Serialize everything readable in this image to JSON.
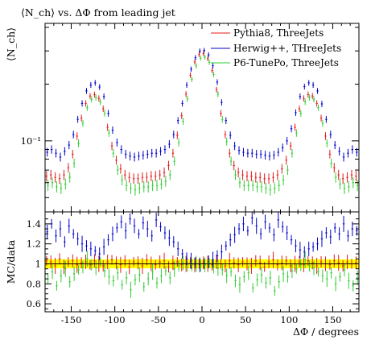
{
  "chart_data": {
    "type": "scatter",
    "title": "⟨N_ch⟩ vs. ΔΦ from leading jet",
    "main_panel": {
      "ylabel": "⟨N_ch⟩",
      "yscale": "log",
      "ylim": [
        0.042,
        0.42
      ],
      "ytick_labels": [
        {
          "value": 0.1,
          "label": "10⁻¹"
        }
      ],
      "legend_position": "top-right"
    },
    "ratio_panel": {
      "ylabel": "MC/data",
      "ylim": [
        0.52,
        1.52
      ],
      "ytick_values": [
        0.6,
        0.8,
        1.0,
        1.2,
        1.4
      ],
      "ytick_labels": [
        "0.6",
        "0.8",
        "1",
        "1.2",
        "1.4"
      ],
      "reference_band": {
        "low": 0.955,
        "high": 1.045,
        "color": "#ffff00"
      }
    },
    "xlabel": "ΔΦ / degrees",
    "xlim": [
      -180,
      180
    ],
    "xtick_values": [
      -150,
      -100,
      -50,
      0,
      50,
      100,
      150
    ],
    "xtick_labels": [
      "-150",
      "-100",
      "-50",
      "0",
      "50",
      "100",
      "150"
    ],
    "grid": false,
    "x": [
      -177.5,
      -172.5,
      -167.5,
      -162.5,
      -157.5,
      -152.5,
      -147.5,
      -142.5,
      -137.5,
      -132.5,
      -127.5,
      -122.5,
      -117.5,
      -112.5,
      -107.5,
      -102.5,
      -97.5,
      -92.5,
      -87.5,
      -82.5,
      -77.5,
      -72.5,
      -67.5,
      -62.5,
      -57.5,
      -52.5,
      -47.5,
      -42.5,
      -37.5,
      -32.5,
      -27.5,
      -22.5,
      -17.5,
      -12.5,
      -7.5,
      -2.5,
      2.5,
      7.5,
      12.5,
      17.5,
      22.5,
      27.5,
      32.5,
      37.5,
      42.5,
      47.5,
      52.5,
      57.5,
      62.5,
      67.5,
      72.5,
      77.5,
      82.5,
      87.5,
      92.5,
      97.5,
      102.5,
      107.5,
      112.5,
      117.5,
      122.5,
      127.5,
      132.5,
      137.5,
      142.5,
      147.5,
      152.5,
      157.5,
      162.5,
      167.5,
      172.5,
      177.5
    ],
    "series": [
      {
        "name": "Pythia8, ThreeJets",
        "color": "#e41a1c",
        "values": [
          0.065,
          0.066,
          0.064,
          0.063,
          0.066,
          0.072,
          0.085,
          0.106,
          0.132,
          0.158,
          0.173,
          0.176,
          0.168,
          0.148,
          0.118,
          0.094,
          0.079,
          0.071,
          0.066,
          0.064,
          0.063,
          0.063,
          0.064,
          0.064,
          0.065,
          0.065,
          0.066,
          0.068,
          0.074,
          0.086,
          0.107,
          0.136,
          0.177,
          0.223,
          0.262,
          0.287,
          0.29,
          0.273,
          0.236,
          0.187,
          0.14,
          0.108,
          0.086,
          0.074,
          0.068,
          0.066,
          0.065,
          0.065,
          0.064,
          0.064,
          0.063,
          0.063,
          0.064,
          0.066,
          0.071,
          0.079,
          0.094,
          0.118,
          0.148,
          0.168,
          0.176,
          0.173,
          0.158,
          0.132,
          0.106,
          0.085,
          0.072,
          0.066,
          0.063,
          0.064,
          0.066,
          0.065
        ],
        "ratio": [
          1.03,
          1.02,
          0.98,
          1.05,
          0.97,
          1.02,
          1.03,
          0.99,
          1.01,
          1.02,
          0.99,
          1.03,
          1.0,
          0.98,
          1.02,
          1.04,
          1.01,
          0.99,
          1.03,
          0.97,
          1.02,
          1.01,
          0.98,
          1.04,
          1.0,
          0.99,
          1.02,
          1.03,
          0.97,
          1.01,
          1.02,
          0.99,
          1.0,
          1.01,
          0.99,
          1.0,
          1.01,
          1.0,
          0.99,
          1.02,
          1.0,
          0.98,
          1.03,
          1.01,
          0.99,
          1.02,
          1.0,
          0.98,
          1.03,
          1.01,
          0.97,
          1.02,
          1.04,
          0.99,
          1.01,
          1.03,
          0.98,
          1.0,
          1.02,
          0.99,
          1.03,
          1.01,
          0.98,
          1.02,
          1.0,
          0.99,
          1.03,
          1.01,
          0.98,
          1.02,
          1.0,
          1.01
        ]
      },
      {
        "name": "Herwig++, THreeJets",
        "color": "#0000cc",
        "values": [
          0.087,
          0.09,
          0.086,
          0.082,
          0.088,
          0.095,
          0.108,
          0.13,
          0.158,
          0.184,
          0.198,
          0.203,
          0.193,
          0.172,
          0.14,
          0.114,
          0.098,
          0.09,
          0.085,
          0.083,
          0.082,
          0.083,
          0.084,
          0.085,
          0.086,
          0.086,
          0.088,
          0.09,
          0.096,
          0.108,
          0.128,
          0.158,
          0.198,
          0.24,
          0.276,
          0.3,
          0.302,
          0.286,
          0.25,
          0.205,
          0.16,
          0.128,
          0.107,
          0.094,
          0.089,
          0.087,
          0.086,
          0.086,
          0.085,
          0.085,
          0.084,
          0.083,
          0.084,
          0.087,
          0.092,
          0.1,
          0.116,
          0.141,
          0.172,
          0.194,
          0.203,
          0.198,
          0.184,
          0.157,
          0.13,
          0.108,
          0.095,
          0.088,
          0.082,
          0.086,
          0.09,
          0.087
        ],
        "ratio": [
          1.32,
          1.4,
          1.28,
          1.35,
          1.22,
          1.38,
          1.3,
          1.25,
          1.2,
          1.18,
          1.15,
          1.13,
          1.1,
          1.17,
          1.24,
          1.3,
          1.36,
          1.42,
          1.33,
          1.45,
          1.38,
          1.3,
          1.41,
          1.35,
          1.28,
          1.44,
          1.37,
          1.31,
          1.26,
          1.22,
          1.15,
          1.1,
          1.05,
          1.03,
          1.01,
          0.99,
          1.0,
          1.02,
          1.04,
          1.08,
          1.12,
          1.18,
          1.24,
          1.29,
          1.35,
          1.4,
          1.33,
          1.46,
          1.38,
          1.3,
          1.42,
          1.36,
          1.29,
          1.44,
          1.37,
          1.31,
          1.24,
          1.18,
          1.14,
          1.12,
          1.15,
          1.17,
          1.2,
          1.25,
          1.31,
          1.27,
          1.36,
          1.3,
          1.4,
          1.28,
          1.35,
          1.33
        ]
      },
      {
        "name": "P6-TunePo, ThreeJets",
        "color": "#33cc33",
        "values": [
          0.058,
          0.06,
          0.057,
          0.056,
          0.059,
          0.064,
          0.076,
          0.097,
          0.124,
          0.15,
          0.166,
          0.17,
          0.161,
          0.14,
          0.11,
          0.086,
          0.07,
          0.062,
          0.058,
          0.056,
          0.055,
          0.056,
          0.057,
          0.057,
          0.058,
          0.058,
          0.059,
          0.061,
          0.066,
          0.078,
          0.098,
          0.127,
          0.167,
          0.212,
          0.25,
          0.275,
          0.278,
          0.261,
          0.225,
          0.177,
          0.13,
          0.099,
          0.078,
          0.066,
          0.06,
          0.058,
          0.058,
          0.058,
          0.057,
          0.057,
          0.056,
          0.055,
          0.056,
          0.058,
          0.062,
          0.07,
          0.086,
          0.11,
          0.14,
          0.161,
          0.17,
          0.166,
          0.15,
          0.124,
          0.097,
          0.076,
          0.064,
          0.059,
          0.056,
          0.057,
          0.06,
          0.058
        ],
        "ratio": [
          0.85,
          0.92,
          0.78,
          0.88,
          0.95,
          0.82,
          0.9,
          0.94,
          0.97,
          1.05,
          0.99,
          0.96,
          1.02,
          0.93,
          0.87,
          0.83,
          0.91,
          0.79,
          0.86,
          0.74,
          0.84,
          0.89,
          0.77,
          0.85,
          0.92,
          0.81,
          0.88,
          0.93,
          0.86,
          0.95,
          0.98,
          1.01,
          0.97,
          0.99,
          1.0,
          0.98,
          0.99,
          1.01,
          0.97,
          0.96,
          0.94,
          0.88,
          0.92,
          0.83,
          0.79,
          0.87,
          0.91,
          0.76,
          0.84,
          0.89,
          0.81,
          0.86,
          0.73,
          0.82,
          0.9,
          0.87,
          0.93,
          0.95,
          0.99,
          1.04,
          0.98,
          0.96,
          0.92,
          0.88,
          0.85,
          0.91,
          0.8,
          0.87,
          0.94,
          0.83,
          0.78,
          0.86
        ]
      }
    ]
  }
}
